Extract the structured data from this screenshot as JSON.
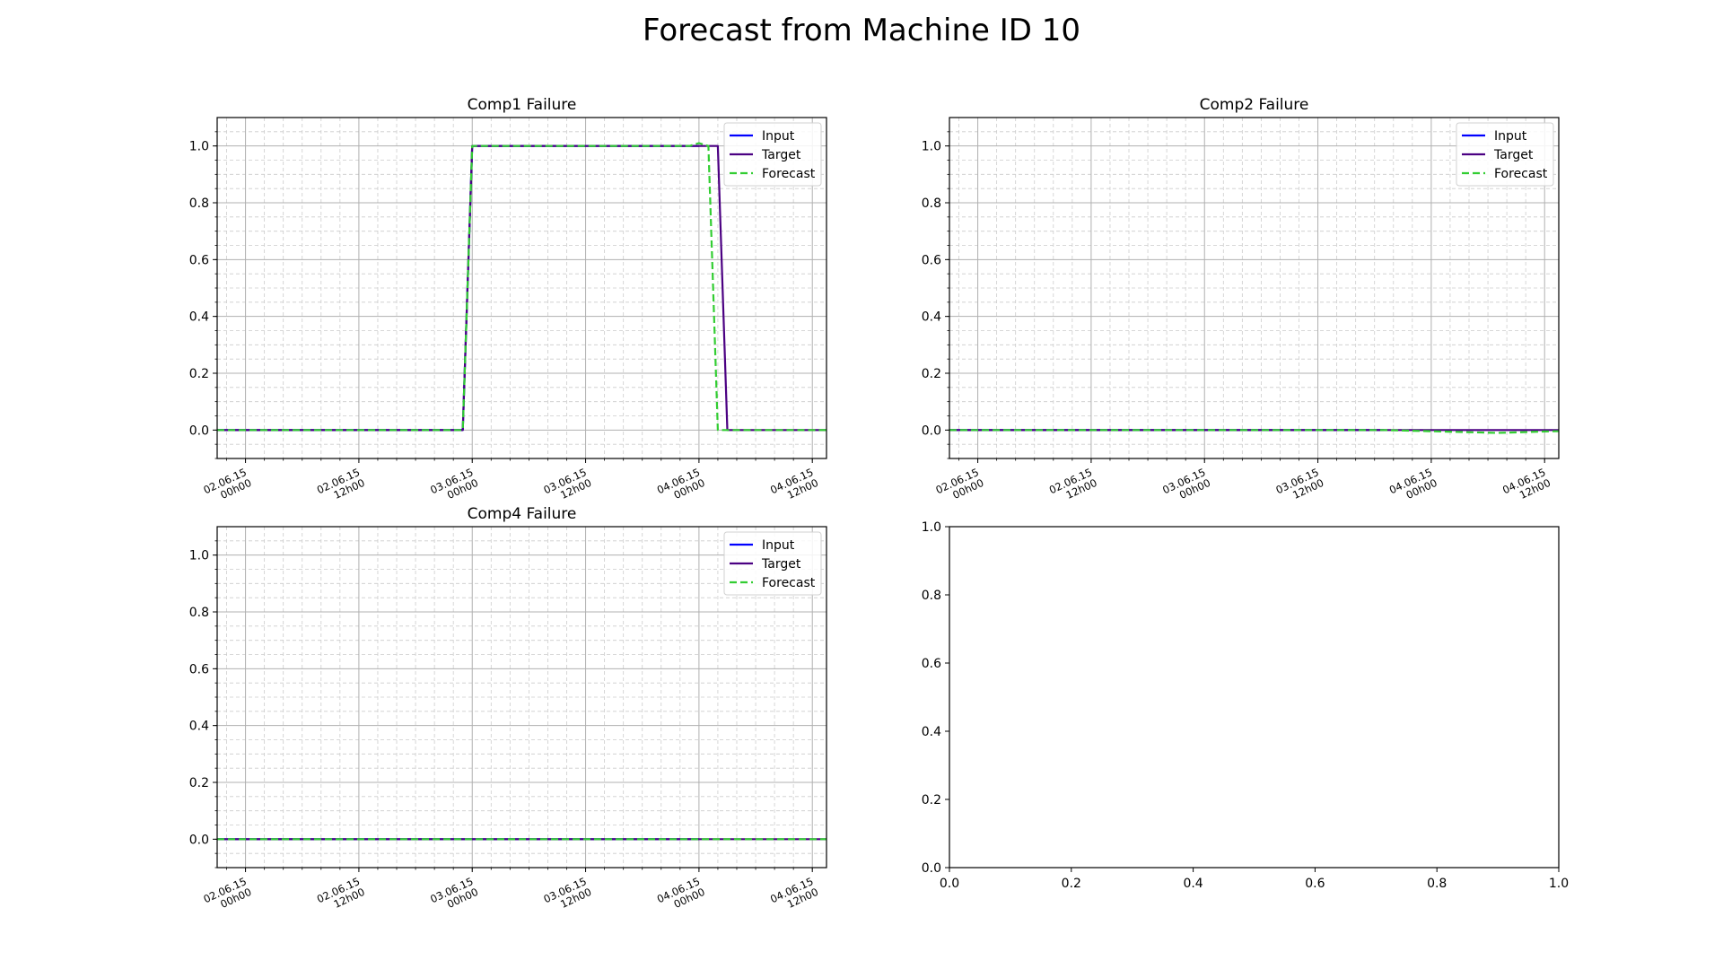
{
  "figure": {
    "title": "Forecast from Machine ID 10"
  },
  "chart_data": [
    {
      "type": "line",
      "title": "Comp1 Failure",
      "xlabel": "",
      "ylabel": "",
      "x_unit": "hours",
      "xlim": [
        -3,
        61.5
      ],
      "ylim": [
        -0.1,
        1.1
      ],
      "yticks": [
        "0.0",
        "0.2",
        "0.4",
        "0.6",
        "0.8",
        "1.0"
      ],
      "ytick_values": [
        0,
        0.2,
        0.4,
        0.6,
        0.8,
        1.0
      ],
      "xticks": [
        {
          "v": 0,
          "l1": "02.06.15",
          "l2": "00h00"
        },
        {
          "v": 12,
          "l1": "02.06.15",
          "l2": "12h00"
        },
        {
          "v": 24,
          "l1": "03.06.15",
          "l2": "00h00"
        },
        {
          "v": 36,
          "l1": "03.06.15",
          "l2": "12h00"
        },
        {
          "v": 48,
          "l1": "04.06.15",
          "l2": "00h00"
        },
        {
          "v": 60,
          "l1": "04.06.15",
          "l2": "12h00"
        }
      ],
      "grid": true,
      "legend": "top-right",
      "series": [
        {
          "name": "Input",
          "color": "#0000ff",
          "dash": "solid",
          "x": [
            -3,
            23,
            24,
            48
          ],
          "y": [
            0,
            0,
            1,
            1
          ]
        },
        {
          "name": "Target",
          "color": "#4b0082",
          "dash": "solid",
          "x": [
            -3,
            23,
            24,
            50,
            51,
            67
          ],
          "y": [
            0,
            0,
            1,
            1,
            0,
            0
          ]
        },
        {
          "name": "Forecast",
          "color": "#32cd32",
          "dash": "dashed",
          "x": [
            -3,
            23,
            24,
            47,
            48,
            49,
            50,
            67
          ],
          "y": [
            0,
            0,
            1,
            1,
            1.01,
            1,
            0,
            0
          ]
        }
      ]
    },
    {
      "type": "line",
      "title": "Comp2 Failure",
      "xlabel": "",
      "ylabel": "",
      "x_unit": "hours",
      "xlim": [
        -3,
        61.5
      ],
      "ylim": [
        -0.1,
        1.1
      ],
      "yticks": [
        "0.0",
        "0.2",
        "0.4",
        "0.6",
        "0.8",
        "1.0"
      ],
      "ytick_values": [
        0,
        0.2,
        0.4,
        0.6,
        0.8,
        1.0
      ],
      "xticks": [
        {
          "v": 0,
          "l1": "02.06.15",
          "l2": "00h00"
        },
        {
          "v": 12,
          "l1": "02.06.15",
          "l2": "12h00"
        },
        {
          "v": 24,
          "l1": "03.06.15",
          "l2": "00h00"
        },
        {
          "v": 36,
          "l1": "03.06.15",
          "l2": "12h00"
        },
        {
          "v": 48,
          "l1": "04.06.15",
          "l2": "00h00"
        },
        {
          "v": 60,
          "l1": "04.06.15",
          "l2": "12h00"
        }
      ],
      "grid": true,
      "legend": "top-right",
      "series": [
        {
          "name": "Input",
          "color": "#0000ff",
          "dash": "solid",
          "x": [
            -3,
            43
          ],
          "y": [
            0,
            0
          ]
        },
        {
          "name": "Target",
          "color": "#4b0082",
          "dash": "solid",
          "x": [
            -3,
            67
          ],
          "y": [
            0,
            0
          ]
        },
        {
          "name": "Forecast",
          "color": "#32cd32",
          "dash": "dashed",
          "x": [
            -3,
            43,
            55,
            60,
            67
          ],
          "y": [
            0,
            0,
            -0.01,
            -0.005,
            0
          ]
        }
      ]
    },
    {
      "type": "line",
      "title": "Comp4 Failure",
      "xlabel": "",
      "ylabel": "",
      "x_unit": "hours",
      "xlim": [
        -3,
        61.5
      ],
      "ylim": [
        -0.1,
        1.1
      ],
      "yticks": [
        "0.0",
        "0.2",
        "0.4",
        "0.6",
        "0.8",
        "1.0"
      ],
      "ytick_values": [
        0,
        0.2,
        0.4,
        0.6,
        0.8,
        1.0
      ],
      "xticks": [
        {
          "v": 0,
          "l1": "02.06.15",
          "l2": "00h00"
        },
        {
          "v": 12,
          "l1": "02.06.15",
          "l2": "12h00"
        },
        {
          "v": 24,
          "l1": "03.06.15",
          "l2": "00h00"
        },
        {
          "v": 36,
          "l1": "03.06.15",
          "l2": "12h00"
        },
        {
          "v": 48,
          "l1": "04.06.15",
          "l2": "00h00"
        },
        {
          "v": 60,
          "l1": "04.06.15",
          "l2": "12h00"
        }
      ],
      "grid": true,
      "legend": "top-right",
      "series": [
        {
          "name": "Input",
          "color": "#0000ff",
          "dash": "solid",
          "x": [
            -3,
            48
          ],
          "y": [
            0,
            0
          ]
        },
        {
          "name": "Target",
          "color": "#4b0082",
          "dash": "solid",
          "x": [
            -3,
            67
          ],
          "y": [
            0,
            0
          ]
        },
        {
          "name": "Forecast",
          "color": "#32cd32",
          "dash": "dashed",
          "x": [
            -3,
            67
          ],
          "y": [
            0,
            0
          ]
        }
      ]
    },
    {
      "type": "empty",
      "title": "",
      "xlim": [
        0,
        1
      ],
      "ylim": [
        0,
        1
      ],
      "xticks_text": [
        "0.0",
        "0.2",
        "0.4",
        "0.6",
        "0.8",
        "1.0"
      ],
      "yticks_text": [
        "0.0",
        "0.2",
        "0.4",
        "0.6",
        "0.8",
        "1.0"
      ],
      "grid": false,
      "series": []
    }
  ]
}
